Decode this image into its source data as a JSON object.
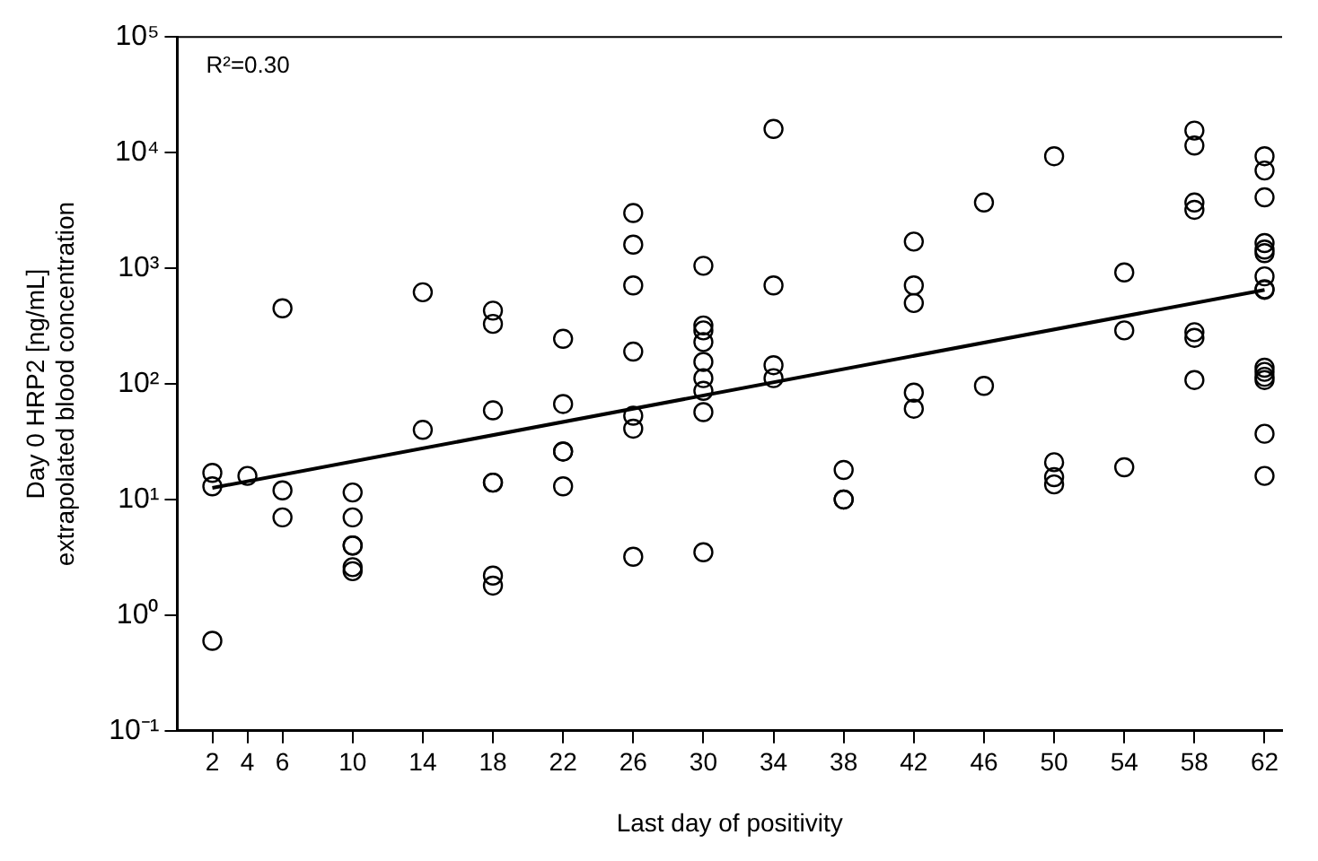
{
  "chart_data": {
    "type": "scatter",
    "xlabel": "Last day of positivity",
    "ylabel": "Day 0 HRP2 [ng/mL]\nextrapolated blood concentration",
    "annotations": [
      "R²=0.30"
    ],
    "log": "y",
    "grid": false,
    "legend": false,
    "marker": "circle",
    "xlim": [
      0,
      63
    ],
    "xticks": [
      2,
      4,
      6,
      10,
      14,
      18,
      22,
      26,
      30,
      34,
      38,
      42,
      46,
      50,
      54,
      58,
      62
    ],
    "ylim": [
      0.1,
      100000
    ],
    "yticks": [
      {
        "value": 0.1,
        "label": "10⁻¹"
      },
      {
        "value": 1,
        "label": "10⁰"
      },
      {
        "value": 10,
        "label": "10¹"
      },
      {
        "value": 100,
        "label": "10²"
      },
      {
        "value": 1000,
        "label": "10³"
      },
      {
        "value": 10000,
        "label": "10⁴"
      },
      {
        "value": 100000,
        "label": "10⁵"
      }
    ],
    "series": [
      {
        "color": "#000000",
        "x": [
          2,
          2,
          2,
          4,
          6,
          6,
          6,
          10,
          10,
          10,
          10,
          10,
          10,
          14,
          14,
          18,
          18,
          18,
          18,
          18,
          18,
          18,
          22,
          22,
          22,
          22,
          22,
          26,
          26,
          26,
          26,
          26,
          26,
          26,
          30,
          30,
          30,
          30,
          30,
          30,
          30,
          30,
          30,
          34,
          34,
          34,
          34,
          38,
          38,
          38,
          42,
          42,
          42,
          42,
          42,
          46,
          46,
          50,
          50,
          50,
          50,
          54,
          54,
          54,
          58,
          58,
          58,
          58,
          58,
          58,
          58,
          62,
          62,
          62,
          62,
          62,
          62,
          62,
          62,
          62,
          62,
          62,
          62,
          62,
          62,
          62
        ],
        "values": [
          17,
          13,
          0.6,
          16,
          450,
          12,
          7,
          11.5,
          7,
          4,
          4,
          2.6,
          2.4,
          620,
          40,
          430,
          330,
          59,
          14,
          14,
          2.2,
          1.8,
          245,
          67,
          26,
          26,
          13,
          3000,
          1600,
          710,
          190,
          53,
          41,
          3.2,
          1050,
          320,
          290,
          230,
          155,
          112,
          87,
          57,
          3.5,
          16000,
          710,
          145,
          112,
          18,
          10,
          10,
          1700,
          710,
          500,
          84,
          61,
          3700,
          96,
          9300,
          21,
          15.6,
          13.5,
          920,
          290,
          19,
          15500,
          11500,
          3700,
          3200,
          280,
          250,
          108,
          9300,
          7000,
          4100,
          1650,
          1450,
          1350,
          850,
          660,
          650,
          138,
          127,
          115,
          108,
          37,
          16
        ]
      },
      {
        "type": "line",
        "marker": "none",
        "color": "#000000",
        "x": [
          2,
          62
        ],
        "values": [
          12.6,
          650
        ]
      }
    ]
  }
}
